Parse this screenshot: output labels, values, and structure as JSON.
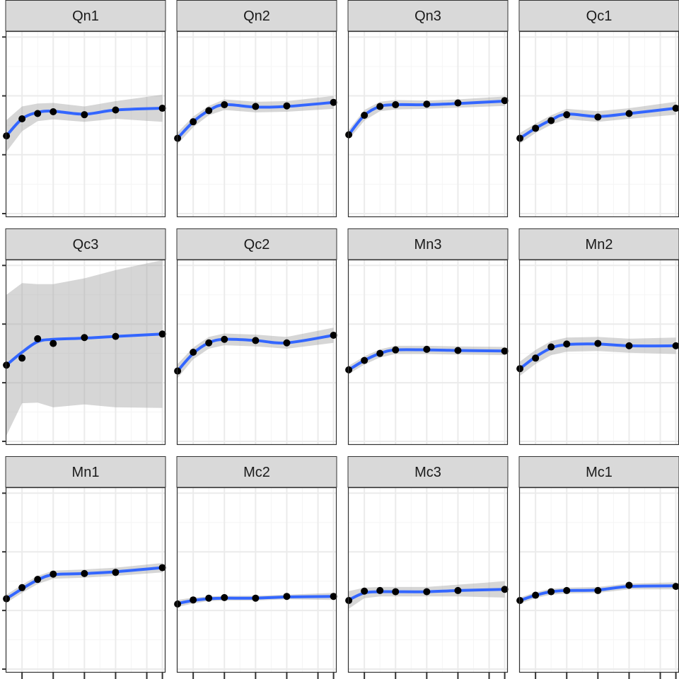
{
  "chart_data": {
    "type": "line",
    "layout": "facet-grid",
    "x": [
      1,
      2,
      3,
      4,
      6,
      8,
      11
    ],
    "xticks": [
      2,
      4,
      6,
      8,
      10,
      11
    ],
    "xlim": [
      0.95,
      11.2
    ],
    "yticks": [
      0,
      1,
      2,
      3
    ],
    "ylim": [
      -0.06,
      3.1
    ],
    "grid": true,
    "legend": "none",
    "colors": {
      "fit_line": "#3366FF",
      "ribbon": "#999999",
      "points": "#000000",
      "strip_bg": "#D9D9D9",
      "panel_border": "#333333",
      "grid_major": "#EBEBEB",
      "grid_minor": "#F5F5F5"
    },
    "panels": [
      {
        "label": "Qn1",
        "values": [
          1.32,
          1.61,
          1.7,
          1.73,
          1.68,
          1.76,
          1.79
        ],
        "fit": [
          1.32,
          1.61,
          1.72,
          1.74,
          1.69,
          1.76,
          1.79
        ],
        "lower": [
          1.05,
          1.4,
          1.57,
          1.6,
          1.56,
          1.61,
          1.56
        ],
        "upper": [
          1.59,
          1.82,
          1.87,
          1.88,
          1.82,
          1.91,
          2.02
        ]
      },
      {
        "label": "Qn2",
        "values": [
          1.28,
          1.56,
          1.75,
          1.85,
          1.82,
          1.83,
          1.89
        ],
        "fit": [
          1.28,
          1.56,
          1.75,
          1.85,
          1.81,
          1.82,
          1.89
        ],
        "lower": [
          1.18,
          1.47,
          1.67,
          1.76,
          1.72,
          1.73,
          1.78
        ],
        "upper": [
          1.38,
          1.65,
          1.83,
          1.94,
          1.9,
          1.91,
          2.0
        ]
      },
      {
        "label": "Qn3",
        "values": [
          1.34,
          1.67,
          1.82,
          1.85,
          1.86,
          1.88,
          1.92
        ],
        "fit": [
          1.34,
          1.67,
          1.82,
          1.85,
          1.85,
          1.87,
          1.91
        ],
        "lower": [
          1.26,
          1.58,
          1.74,
          1.77,
          1.78,
          1.8,
          1.83
        ],
        "upper": [
          1.42,
          1.76,
          1.9,
          1.93,
          1.92,
          1.94,
          1.99
        ]
      },
      {
        "label": "Qc1",
        "values": [
          1.28,
          1.45,
          1.58,
          1.68,
          1.64,
          1.7,
          1.79
        ],
        "fit": [
          1.28,
          1.45,
          1.59,
          1.69,
          1.65,
          1.7,
          1.79
        ],
        "lower": [
          1.19,
          1.37,
          1.51,
          1.6,
          1.56,
          1.61,
          1.68
        ],
        "upper": [
          1.37,
          1.53,
          1.67,
          1.78,
          1.74,
          1.79,
          1.9
        ]
      },
      {
        "label": "Qc3",
        "values": [
          1.3,
          1.42,
          1.75,
          1.67,
          1.77,
          1.79,
          1.83
        ],
        "fit": [
          1.3,
          1.52,
          1.7,
          1.74,
          1.76,
          1.79,
          1.83
        ],
        "lower": [
          0.1,
          0.65,
          0.66,
          0.58,
          0.63,
          0.58,
          0.57
        ],
        "upper": [
          2.5,
          2.7,
          2.68,
          2.68,
          2.78,
          2.92,
          3.09
        ]
      },
      {
        "label": "Qc2",
        "values": [
          1.2,
          1.52,
          1.68,
          1.74,
          1.72,
          1.68,
          1.81
        ],
        "fit": [
          1.2,
          1.5,
          1.68,
          1.74,
          1.72,
          1.68,
          1.81
        ],
        "lower": [
          1.08,
          1.4,
          1.58,
          1.64,
          1.62,
          1.58,
          1.68
        ],
        "upper": [
          1.32,
          1.6,
          1.78,
          1.84,
          1.82,
          1.78,
          1.94
        ]
      },
      {
        "label": "Mn3",
        "values": [
          1.22,
          1.38,
          1.5,
          1.56,
          1.57,
          1.55,
          1.54
        ],
        "fit": [
          1.22,
          1.38,
          1.5,
          1.56,
          1.56,
          1.55,
          1.54
        ],
        "lower": [
          1.15,
          1.31,
          1.43,
          1.49,
          1.49,
          1.48,
          1.47
        ],
        "upper": [
          1.29,
          1.45,
          1.57,
          1.63,
          1.63,
          1.62,
          1.61
        ]
      },
      {
        "label": "Mn2",
        "values": [
          1.24,
          1.42,
          1.61,
          1.66,
          1.67,
          1.63,
          1.63
        ],
        "fit": [
          1.24,
          1.44,
          1.59,
          1.65,
          1.66,
          1.63,
          1.63
        ],
        "lower": [
          1.12,
          1.32,
          1.47,
          1.53,
          1.54,
          1.51,
          1.49
        ],
        "upper": [
          1.36,
          1.56,
          1.71,
          1.77,
          1.78,
          1.75,
          1.77
        ]
      },
      {
        "label": "Mn1",
        "values": [
          1.2,
          1.39,
          1.53,
          1.62,
          1.63,
          1.65,
          1.73
        ],
        "fit": [
          1.2,
          1.37,
          1.52,
          1.61,
          1.63,
          1.66,
          1.73
        ],
        "lower": [
          1.13,
          1.3,
          1.45,
          1.54,
          1.56,
          1.59,
          1.65
        ],
        "upper": [
          1.27,
          1.44,
          1.59,
          1.68,
          1.7,
          1.73,
          1.81
        ]
      },
      {
        "label": "Mc2",
        "values": [
          1.11,
          1.18,
          1.21,
          1.22,
          1.21,
          1.24,
          1.24
        ],
        "fit": [
          1.12,
          1.17,
          1.2,
          1.21,
          1.21,
          1.23,
          1.24
        ],
        "lower": [
          1.06,
          1.12,
          1.16,
          1.17,
          1.17,
          1.19,
          1.18
        ],
        "upper": [
          1.18,
          1.22,
          1.24,
          1.25,
          1.25,
          1.27,
          1.3
        ]
      },
      {
        "label": "Mc3",
        "values": [
          1.17,
          1.33,
          1.34,
          1.32,
          1.32,
          1.34,
          1.36
        ],
        "fit": [
          1.18,
          1.3,
          1.32,
          1.32,
          1.32,
          1.34,
          1.36
        ],
        "lower": [
          1.03,
          1.21,
          1.24,
          1.24,
          1.24,
          1.24,
          1.22
        ],
        "upper": [
          1.33,
          1.39,
          1.4,
          1.4,
          1.4,
          1.44,
          1.5
        ]
      },
      {
        "label": "Mc1",
        "values": [
          1.17,
          1.26,
          1.32,
          1.34,
          1.34,
          1.43,
          1.41
        ],
        "fit": [
          1.17,
          1.26,
          1.32,
          1.34,
          1.35,
          1.41,
          1.42
        ],
        "lower": [
          1.12,
          1.21,
          1.27,
          1.29,
          1.3,
          1.36,
          1.36
        ],
        "upper": [
          1.22,
          1.31,
          1.37,
          1.39,
          1.4,
          1.46,
          1.48
        ]
      }
    ]
  }
}
